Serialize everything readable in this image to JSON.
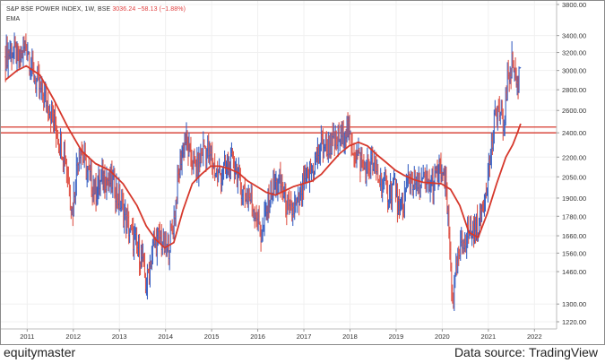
{
  "header": {
    "symbol": "S&P BSE POWER INDEX, 1W, BSE",
    "price": "3036.24",
    "change": "−58.13 (−1.88%)",
    "indicator": "EMA"
  },
  "footer": {
    "brand": "equitymaster",
    "source": "Data source: TradingView"
  },
  "chart_data": {
    "type": "line",
    "title": "S&P BSE POWER INDEX, 1W, BSE",
    "x_ticks": [
      "2011",
      "2012",
      "2013",
      "2014",
      "2015",
      "2016",
      "2017",
      "2018",
      "2019",
      "2020",
      "2021",
      "2022"
    ],
    "y_ticks": [
      "1220.00",
      "1300.00",
      "1460.00",
      "1560.00",
      "1660.00",
      "1780.00",
      "1900.00",
      "2050.00",
      "2200.00",
      "2400.00",
      "2600.00",
      "2800.00",
      "3000.00",
      "3200.00",
      "3400.00",
      "3800.00"
    ],
    "ylim": [
      1220,
      3800
    ],
    "log_scale": true,
    "price_series": {
      "name": "S&P BSE POWER INDEX",
      "x": [
        2010.55,
        2010.7,
        2010.85,
        2011.0,
        2011.15,
        2011.3,
        2011.5,
        2011.7,
        2011.85,
        2012.0,
        2012.15,
        2012.3,
        2012.5,
        2012.7,
        2012.9,
        2013.1,
        2013.3,
        2013.5,
        2013.6,
        2013.75,
        2013.9,
        2014.05,
        2014.2,
        2014.35,
        2014.45,
        2014.55,
        2014.7,
        2014.85,
        2015.0,
        2015.15,
        2015.3,
        2015.5,
        2015.7,
        2015.85,
        2016.0,
        2016.1,
        2016.3,
        2016.5,
        2016.7,
        2016.9,
        2017.0,
        2017.2,
        2017.4,
        2017.6,
        2017.8,
        2017.95,
        2018.05,
        2018.2,
        2018.35,
        2018.5,
        2018.7,
        2018.85,
        2019.0,
        2019.1,
        2019.3,
        2019.45,
        2019.6,
        2019.8,
        2020.0,
        2020.1,
        2020.2,
        2020.25,
        2020.35,
        2020.5,
        2020.7,
        2020.85,
        2021.0,
        2021.1,
        2021.2,
        2021.35,
        2021.45,
        2021.55,
        2021.65,
        2021.72
      ],
      "y": [
        3150,
        3250,
        3100,
        3300,
        2950,
        2800,
        2650,
        2350,
        2200,
        1800,
        2300,
        2100,
        1950,
        2050,
        2000,
        1800,
        1650,
        1550,
        1380,
        1600,
        1650,
        1550,
        1750,
        2200,
        2350,
        2200,
        2100,
        2300,
        2200,
        2050,
        2100,
        2150,
        1950,
        1900,
        1800,
        1650,
        1950,
        2000,
        1800,
        1850,
        2000,
        2100,
        2300,
        2300,
        2350,
        2450,
        2300,
        2200,
        2100,
        2150,
        2000,
        1950,
        2000,
        1750,
        2050,
        2000,
        2000,
        2000,
        2100,
        1950,
        1500,
        1300,
        1500,
        1650,
        1700,
        1750,
        2050,
        2300,
        2650,
        2450,
        2950,
        3100,
        2800,
        3150
      ]
    },
    "ema_series": {
      "name": "EMA",
      "x": [
        2010.55,
        2010.8,
        2011.0,
        2011.3,
        2011.6,
        2011.9,
        2012.2,
        2012.5,
        2012.8,
        2013.1,
        2013.4,
        2013.6,
        2013.8,
        2014.0,
        2014.2,
        2014.4,
        2014.6,
        2014.8,
        2015.0,
        2015.2,
        2015.4,
        2015.6,
        2015.8,
        2016.0,
        2016.2,
        2016.4,
        2016.6,
        2016.8,
        2017.0,
        2017.2,
        2017.4,
        2017.6,
        2017.8,
        2018.0,
        2018.2,
        2018.4,
        2018.6,
        2018.8,
        2019.0,
        2019.2,
        2019.4,
        2019.6,
        2019.8,
        2020.0,
        2020.2,
        2020.4,
        2020.6,
        2020.8,
        2021.0,
        2021.2,
        2021.4,
        2021.55,
        2021.65,
        2021.72
      ],
      "y": [
        2900,
        3000,
        3050,
        2950,
        2700,
        2450,
        2250,
        2150,
        2100,
        2000,
        1850,
        1720,
        1640,
        1590,
        1620,
        1820,
        2000,
        2070,
        2130,
        2130,
        2110,
        2080,
        2020,
        1980,
        1940,
        1920,
        1950,
        1980,
        2000,
        2020,
        2070,
        2150,
        2230,
        2290,
        2320,
        2290,
        2220,
        2160,
        2100,
        2060,
        2030,
        2010,
        2005,
        2000,
        1960,
        1850,
        1680,
        1650,
        1800,
        2000,
        2200,
        2300,
        2400,
        2480
      ]
    },
    "horizontal_levels": [
      2400,
      2450
    ]
  }
}
